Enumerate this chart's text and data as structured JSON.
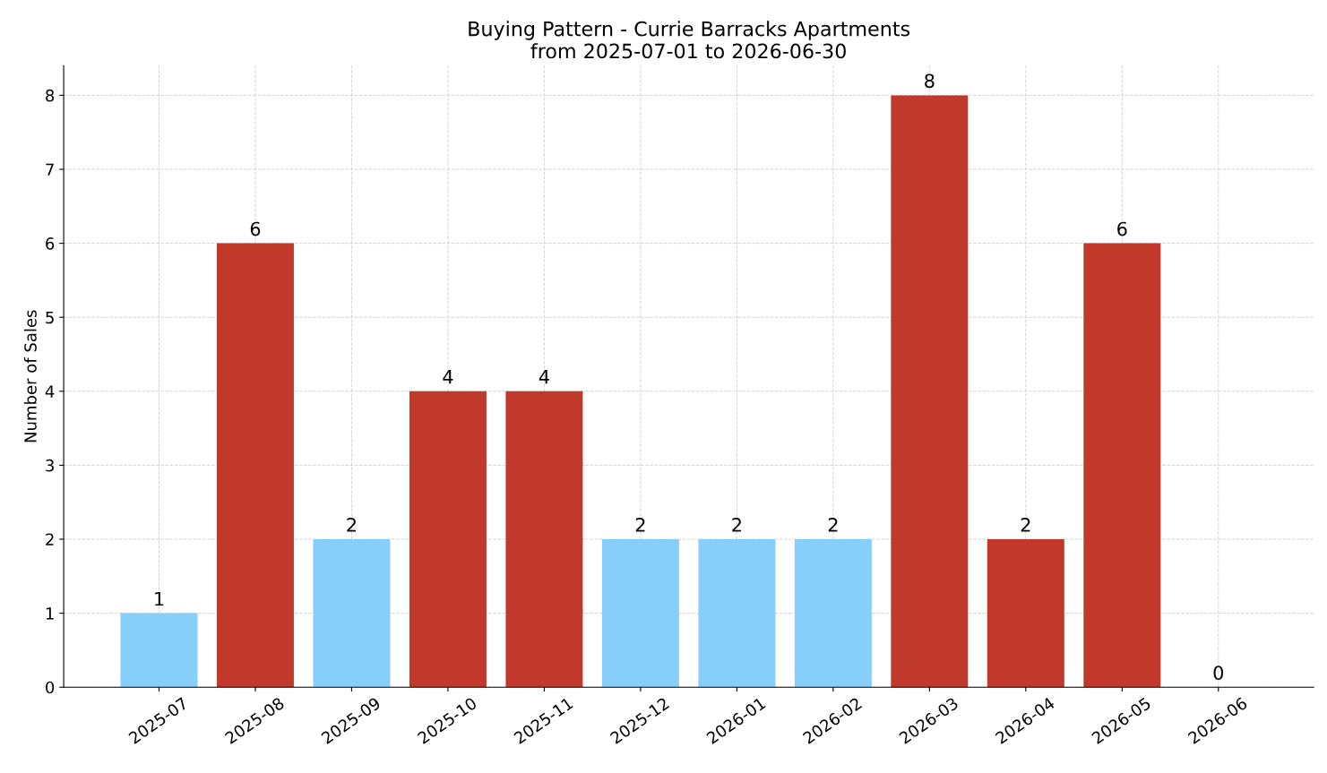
{
  "chart_data": {
    "type": "bar",
    "title": "Buying Pattern - Currie Barracks Apartments\nfrom 2025-07-01 to 2026-06-30",
    "ylabel": "Number of Sales",
    "categories": [
      "2025-07",
      "2025-08",
      "2025-09",
      "2025-10",
      "2025-11",
      "2025-12",
      "2026-01",
      "2026-02",
      "2026-03",
      "2026-04",
      "2026-05",
      "2026-06"
    ],
    "values": [
      1,
      6,
      2,
      4,
      4,
      2,
      2,
      2,
      8,
      2,
      6,
      0
    ],
    "colors": [
      "#87cefa",
      "#c0392b",
      "#87cefa",
      "#c0392b",
      "#c0392b",
      "#87cefa",
      "#87cefa",
      "#87cefa",
      "#c0392b",
      "#c0392b",
      "#c0392b",
      "#87cefa"
    ],
    "ylim": [
      0,
      8.4
    ],
    "yticks": [
      0,
      1,
      2,
      3,
      4,
      5,
      6,
      7,
      8
    ],
    "grid": true,
    "data_labels": true
  }
}
